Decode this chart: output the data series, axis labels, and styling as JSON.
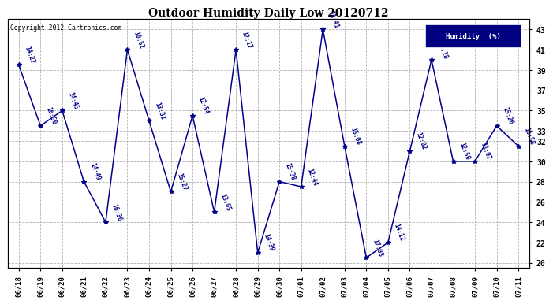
{
  "title": "Outdoor Humidity Daily Low 20120712",
  "copyright": "Copyright 2012 Cartronics.com",
  "legend_label": "Humidity  (%)",
  "line_color": "#00008B",
  "fig_facecolor": "#ffffff",
  "plot_facecolor": "#ffffff",
  "ylim": [
    19.5,
    44
  ],
  "yticks": [
    20,
    22,
    24,
    26,
    28,
    30,
    32,
    33,
    35,
    37,
    39,
    41,
    43
  ],
  "dates": [
    "06/18",
    "06/19",
    "06/20",
    "06/21",
    "06/22",
    "06/23",
    "06/24",
    "06/25",
    "06/26",
    "06/27",
    "06/28",
    "06/29",
    "06/30",
    "07/01",
    "07/02",
    "07/03",
    "07/04",
    "07/05",
    "07/06",
    "07/07",
    "07/08",
    "07/09",
    "07/10",
    "07/11"
  ],
  "values": [
    39.5,
    33.5,
    35.0,
    28.0,
    24.0,
    41.0,
    34.0,
    27.0,
    34.5,
    25.0,
    41.0,
    21.0,
    28.0,
    27.5,
    43.0,
    31.5,
    20.5,
    22.0,
    31.0,
    40.0,
    30.0,
    30.0,
    33.5,
    31.5
  ],
  "point_labels": [
    "14:22",
    "16:50",
    "14:45",
    "14:49",
    "16:36",
    "10:52",
    "13:32",
    "15:27",
    "12:54",
    "13:05",
    "12:17",
    "14:39",
    "15:38",
    "12:44",
    "11:41",
    "15:08",
    "17:08",
    "14:12",
    "12:02",
    "18:18",
    "12:50",
    "11:02",
    "15:26",
    "16:58"
  ]
}
